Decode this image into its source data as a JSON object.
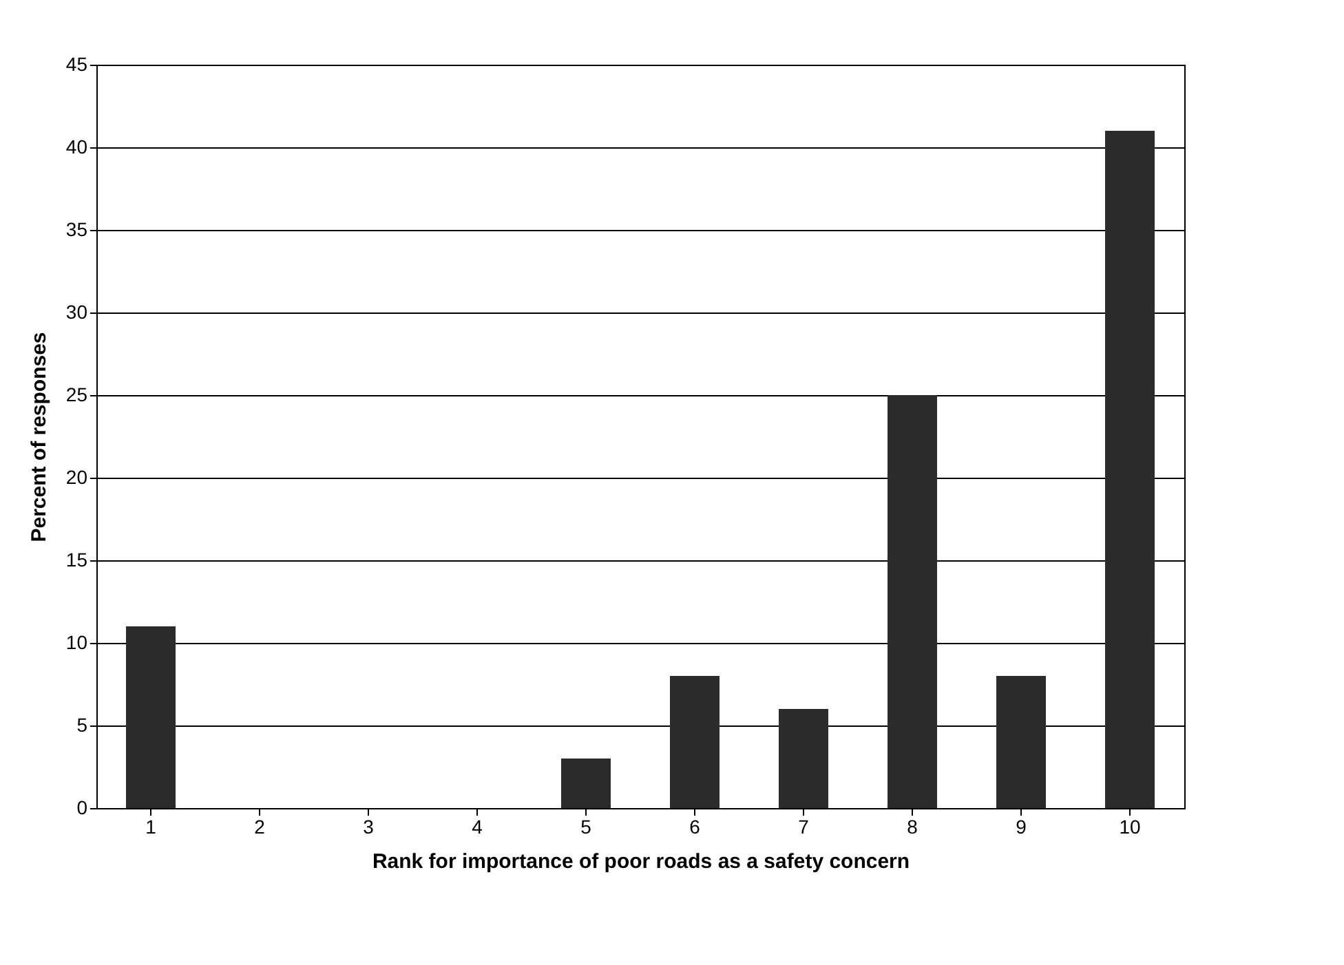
{
  "chart_data": {
    "type": "bar",
    "xlabel": "Rank for importance of poor roads as a safety concern",
    "ylabel": "Percent of responses",
    "categories": [
      "1",
      "2",
      "3",
      "4",
      "5",
      "6",
      "7",
      "8",
      "9",
      "10"
    ],
    "values": [
      11,
      0,
      0,
      0,
      3,
      8,
      6,
      25,
      8,
      41
    ],
    "color": "#2b2b2b",
    "ylim": [
      0,
      45
    ],
    "yticks": [
      0,
      5,
      10,
      15,
      20,
      25,
      30,
      35,
      40,
      45
    ],
    "grid": "y"
  }
}
